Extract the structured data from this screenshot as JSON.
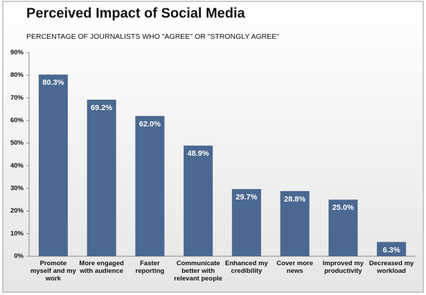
{
  "chart_data": {
    "type": "bar",
    "title": "Perceived Impact of Social Media",
    "subtitle": "PERCENTAGE OF JOURNALISTS WHO \"AGREE\" OR \"STRONGLY AGREE\"",
    "categories": [
      "Promote myself and my work",
      "More engaged with audience",
      "Faster reporting",
      "Communicate better with relevant people",
      "Enhanced my credibility",
      "Cover more news",
      "Improved my productivity",
      "Decreased my workload"
    ],
    "values": [
      80.3,
      69.2,
      62.0,
      48.9,
      29.7,
      28.8,
      25.0,
      6.3
    ],
    "value_labels": [
      "80.3%",
      "69.2%",
      "62.0%",
      "48.9%",
      "29.7%",
      "28.8%",
      "25.0%",
      "6.3%"
    ],
    "color": "#4a6890",
    "ylim": [
      0,
      90
    ],
    "yticks": [
      {
        "value": 0,
        "label": "0%"
      },
      {
        "value": 10,
        "label": "10%"
      },
      {
        "value": 20,
        "label": "20%"
      },
      {
        "value": 30,
        "label": "30%"
      },
      {
        "value": 40,
        "label": "40%"
      },
      {
        "value": 50,
        "label": "50%"
      },
      {
        "value": 60,
        "label": "60%"
      },
      {
        "value": 70,
        "label": "70%"
      },
      {
        "value": 80,
        "label": "80%"
      },
      {
        "value": 90,
        "label": "90%"
      }
    ],
    "grid": false
  }
}
